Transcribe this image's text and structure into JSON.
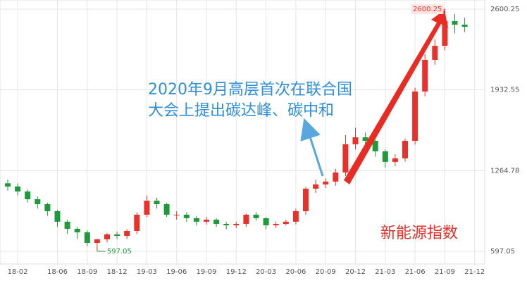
{
  "chart_data": {
    "type": "candlestick",
    "annotations": [
      "2020年9月高层首次在联合国",
      "大会上提出碳达峰、碳中和",
      "新能源指数"
    ],
    "categories": [
      null,
      "18-02",
      null,
      null,
      null,
      "18-06",
      null,
      null,
      "18-09",
      null,
      null,
      "18-12",
      null,
      null,
      "19-03",
      null,
      null,
      "19-06",
      null,
      null,
      "19-09",
      null,
      null,
      "19-12",
      null,
      null,
      "20-03",
      null,
      null,
      "20-06",
      null,
      null,
      "20-09",
      null,
      null,
      "20-12",
      null,
      null,
      "21-03",
      null,
      null,
      "21-06",
      null,
      null,
      "21-09",
      null,
      null,
      "21-12"
    ],
    "open": [
      1160,
      1133,
      1092,
      1028,
      987,
      929,
      842,
      783,
      754,
      667,
      696,
      737,
      725,
      766,
      900,
      1016,
      987,
      900,
      900,
      871,
      842,
      859,
      824,
      812,
      824,
      900,
      871,
      812,
      824,
      842,
      929,
      1115,
      1150,
      1174,
      1249,
      1482,
      1540,
      1511,
      1424,
      1337,
      1366,
      1511,
      1919,
      2181,
      2297,
      2501,
      2472,
      null
    ],
    "high": [
      1190,
      1160,
      1110,
      1050,
      1000,
      940,
      860,
      800,
      770,
      700,
      750,
      760,
      780,
      920,
      1060,
      1040,
      1000,
      930,
      920,
      890,
      880,
      870,
      840,
      840,
      910,
      920,
      880,
      840,
      860,
      950,
      1130,
      1190,
      1200,
      1280,
      1560,
      1620,
      1580,
      1520,
      1440,
      1400,
      1530,
      1950,
      2230,
      2350,
      2600.25,
      2560,
      2530,
      null
    ],
    "low": [
      1100,
      1060,
      1000,
      950,
      890,
      800,
      740,
      700,
      640,
      597.05,
      670,
      700,
      700,
      740,
      880,
      950,
      880,
      860,
      840,
      810,
      820,
      800,
      780,
      790,
      800,
      850,
      780,
      790,
      810,
      820,
      900,
      1080,
      1120,
      1140,
      1220,
      1440,
      1470,
      1380,
      1290,
      1300,
      1340,
      1480,
      1880,
      2140,
      2260,
      2400,
      2410,
      null
    ],
    "close": [
      1133,
      1092,
      1028,
      987,
      929,
      842,
      783,
      754,
      667,
      696,
      737,
      725,
      766,
      900,
      1016,
      987,
      900,
      900,
      871,
      842,
      859,
      824,
      812,
      824,
      900,
      871,
      812,
      824,
      842,
      929,
      1115,
      1150,
      1174,
      1249,
      1482,
      1540,
      1511,
      1424,
      1337,
      1366,
      1511,
      1919,
      2181,
      2297,
      2501,
      2472,
      2454,
      null
    ],
    "up_color": "#e8312a",
    "down_color": "#1f9a3a",
    "ylim": [
      597.05,
      2600.25
    ],
    "yticks": [
      597.05,
      1264.78,
      1932.55,
      2600.25
    ],
    "grid": true
  }
}
